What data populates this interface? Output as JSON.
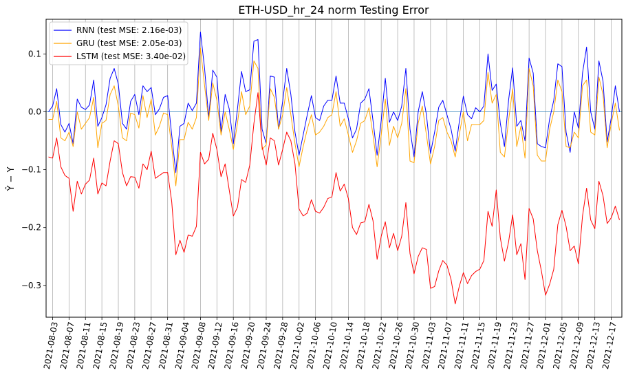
{
  "chart_data": {
    "type": "line",
    "title": "ETH-USD_hr_24 norm Testing Error",
    "xlabel": "",
    "ylabel": "Ŷ − Y",
    "ylim": [
      -0.355,
      0.16
    ],
    "yticks": [
      0.1,
      0.0,
      -0.1,
      -0.2,
      -0.3
    ],
    "ytick_labels": [
      "0.1",
      "0.0",
      "−0.1",
      "−0.2",
      "−0.3"
    ],
    "x_start": "2021-08-02",
    "xtick_labels": [
      "2021-08-03",
      "2021-08-07",
      "2021-08-11",
      "2021-08-15",
      "2021-08-19",
      "2021-08-23",
      "2021-08-27",
      "2021-08-31",
      "2021-09-04",
      "2021-09-08",
      "2021-09-12",
      "2021-09-16",
      "2021-09-20",
      "2021-09-24",
      "2021-09-28",
      "2021-10-02",
      "2021-10-06",
      "2021-10-10",
      "2021-10-14",
      "2021-10-18",
      "2021-10-22",
      "2021-10-26",
      "2021-10-30",
      "2021-11-03",
      "2021-11-07",
      "2021-11-11",
      "2021-11-15",
      "2021-11-19",
      "2021-11-23",
      "2021-11-27",
      "2021-12-01",
      "2021-12-05",
      "2021-12-09",
      "2021-12-13",
      "2021-12-17"
    ],
    "grid": "vertical",
    "legend": "upper left",
    "hline": 0.0,
    "hline_color": "#1f77b4",
    "series": [
      {
        "name": "RNN (test MSE: 2.16e-03)",
        "color": "#0000ff",
        "values": [
          0.0,
          0.01,
          0.04,
          -0.022,
          -0.035,
          -0.02,
          -0.055,
          0.022,
          0.008,
          0.004,
          0.012,
          0.055,
          -0.025,
          -0.01,
          0.012,
          0.058,
          0.075,
          0.048,
          -0.02,
          -0.03,
          0.018,
          0.03,
          -0.005,
          0.045,
          0.035,
          0.042,
          -0.005,
          0.005,
          0.025,
          0.028,
          -0.04,
          -0.105,
          -0.025,
          -0.02,
          0.015,
          0.002,
          0.015,
          0.138,
          0.075,
          -0.01,
          0.072,
          0.06,
          -0.035,
          0.03,
          0.005,
          -0.055,
          0.005,
          0.07,
          0.035,
          0.038,
          0.122,
          0.125,
          -0.03,
          -0.055,
          0.062,
          0.06,
          -0.03,
          0.018,
          0.075,
          0.03,
          -0.035,
          -0.075,
          -0.04,
          -0.005,
          0.028,
          -0.01,
          -0.015,
          0.01,
          0.02,
          0.02,
          0.062,
          0.015,
          0.015,
          -0.012,
          -0.045,
          -0.03,
          0.015,
          0.022,
          0.04,
          -0.015,
          -0.075,
          -0.015,
          0.058,
          -0.018,
          0.0,
          -0.015,
          0.01,
          0.075,
          -0.03,
          -0.078,
          0.0,
          0.035,
          -0.005,
          -0.072,
          -0.035,
          0.008,
          0.02,
          -0.005,
          -0.03,
          -0.068,
          -0.018,
          0.027,
          -0.005,
          -0.012,
          0.007,
          0.0,
          0.01,
          0.1,
          0.037,
          0.048,
          -0.02,
          -0.06,
          0.02,
          0.076,
          -0.025,
          -0.015,
          -0.05,
          0.093,
          0.067,
          -0.055,
          -0.06,
          -0.062,
          -0.012,
          0.02,
          0.083,
          0.078,
          -0.035,
          -0.07,
          0.0,
          -0.028,
          0.067,
          0.112,
          0.0,
          -0.03,
          0.088,
          0.053,
          -0.052,
          -0.01,
          0.045,
          0.0
        ]
      },
      {
        "name": "GRU (test MSE: 2.05e-03)",
        "color": "#ffa500",
        "values": [
          -0.013,
          -0.013,
          0.018,
          -0.045,
          -0.05,
          -0.035,
          -0.06,
          0.0,
          -0.03,
          -0.02,
          -0.01,
          0.025,
          -0.062,
          -0.02,
          -0.015,
          0.03,
          0.045,
          0.01,
          -0.045,
          -0.05,
          -0.002,
          -0.005,
          -0.028,
          0.028,
          -0.01,
          0.022,
          -0.04,
          -0.025,
          -0.002,
          -0.005,
          -0.06,
          -0.128,
          -0.048,
          -0.048,
          -0.018,
          -0.03,
          -0.01,
          0.11,
          0.045,
          -0.015,
          0.05,
          0.02,
          -0.04,
          0.0,
          -0.03,
          -0.065,
          -0.02,
          0.035,
          -0.005,
          0.01,
          0.088,
          0.075,
          -0.065,
          -0.057,
          0.04,
          0.025,
          -0.03,
          -0.005,
          0.042,
          -0.005,
          -0.055,
          -0.095,
          -0.06,
          -0.03,
          -0.005,
          -0.04,
          -0.035,
          -0.025,
          -0.01,
          -0.005,
          0.035,
          -0.025,
          -0.012,
          -0.04,
          -0.07,
          -0.05,
          -0.02,
          -0.015,
          0.007,
          -0.04,
          -0.095,
          -0.04,
          0.022,
          -0.058,
          -0.025,
          -0.045,
          -0.02,
          0.04,
          -0.085,
          -0.088,
          -0.02,
          0.01,
          -0.04,
          -0.09,
          -0.06,
          -0.015,
          -0.01,
          -0.035,
          -0.05,
          -0.078,
          -0.04,
          0.0,
          -0.05,
          -0.022,
          -0.022,
          -0.022,
          -0.015,
          0.068,
          0.015,
          0.03,
          -0.07,
          -0.078,
          -0.015,
          0.04,
          -0.06,
          -0.025,
          -0.08,
          0.075,
          0.045,
          -0.075,
          -0.085,
          -0.085,
          -0.03,
          0.0,
          0.055,
          0.035,
          -0.06,
          -0.062,
          -0.035,
          -0.045,
          0.045,
          0.055,
          -0.035,
          -0.04,
          0.06,
          0.03,
          -0.062,
          -0.02,
          0.015,
          -0.032
        ]
      },
      {
        "name": "LSTM (test MSE: 3.40e-02)",
        "color": "#ff0000",
        "values": [
          -0.078,
          -0.08,
          -0.045,
          -0.095,
          -0.11,
          -0.115,
          -0.172,
          -0.12,
          -0.142,
          -0.125,
          -0.118,
          -0.08,
          -0.142,
          -0.123,
          -0.128,
          -0.085,
          -0.05,
          -0.055,
          -0.105,
          -0.128,
          -0.112,
          -0.113,
          -0.132,
          -0.09,
          -0.1,
          -0.068,
          -0.115,
          -0.11,
          -0.105,
          -0.105,
          -0.155,
          -0.247,
          -0.222,
          -0.243,
          -0.213,
          -0.215,
          -0.198,
          -0.07,
          -0.09,
          -0.082,
          -0.037,
          -0.065,
          -0.112,
          -0.09,
          -0.135,
          -0.18,
          -0.165,
          -0.117,
          -0.122,
          -0.092,
          -0.02,
          0.033,
          -0.06,
          -0.092,
          -0.045,
          -0.05,
          -0.092,
          -0.065,
          -0.035,
          -0.05,
          -0.09,
          -0.168,
          -0.18,
          -0.175,
          -0.152,
          -0.172,
          -0.175,
          -0.165,
          -0.15,
          -0.147,
          -0.105,
          -0.137,
          -0.125,
          -0.15,
          -0.2,
          -0.212,
          -0.192,
          -0.19,
          -0.16,
          -0.188,
          -0.255,
          -0.215,
          -0.19,
          -0.235,
          -0.21,
          -0.24,
          -0.215,
          -0.157,
          -0.245,
          -0.28,
          -0.25,
          -0.235,
          -0.238,
          -0.305,
          -0.302,
          -0.275,
          -0.257,
          -0.265,
          -0.29,
          -0.332,
          -0.302,
          -0.278,
          -0.297,
          -0.283,
          -0.276,
          -0.272,
          -0.257,
          -0.172,
          -0.198,
          -0.135,
          -0.218,
          -0.258,
          -0.225,
          -0.178,
          -0.247,
          -0.228,
          -0.29,
          -0.167,
          -0.185,
          -0.24,
          -0.275,
          -0.317,
          -0.298,
          -0.272,
          -0.195,
          -0.17,
          -0.198,
          -0.24,
          -0.232,
          -0.263,
          -0.18,
          -0.132,
          -0.187,
          -0.202,
          -0.12,
          -0.145,
          -0.193,
          -0.183,
          -0.163,
          -0.187
        ]
      }
    ]
  }
}
